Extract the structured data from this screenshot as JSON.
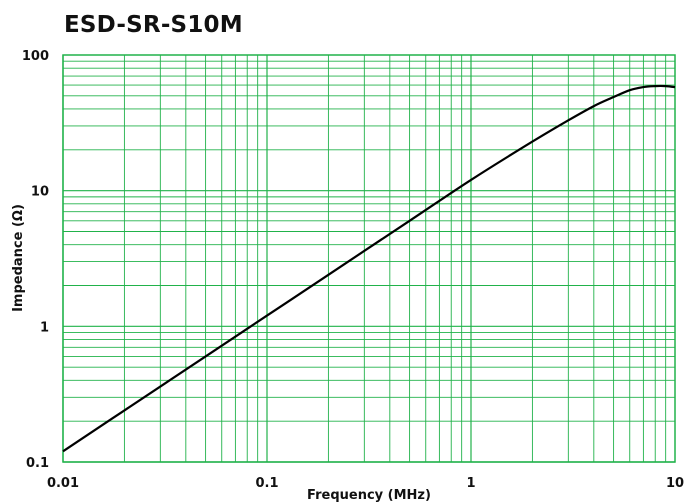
{
  "chart_data": {
    "type": "line",
    "title": "ESD-SR-S10M",
    "xlabel": "Frequency (MHz)",
    "ylabel": "Impedance (Ω)",
    "x_scale": "log",
    "y_scale": "log",
    "xlim": [
      0.01,
      10
    ],
    "ylim": [
      0.1,
      100
    ],
    "x_tick_labels": [
      "0.01",
      "0.1",
      "1",
      "10"
    ],
    "y_tick_labels": [
      "0.1",
      "1",
      "10",
      "100"
    ],
    "grid": true,
    "grid_color": "#21b24a",
    "line_color": "#000000",
    "series": [
      {
        "x": [
          0.01,
          0.02,
          0.05,
          0.1,
          0.2,
          0.5,
          1,
          2,
          3,
          4,
          5,
          6,
          7,
          8,
          9,
          10
        ],
        "values": [
          0.12,
          0.24,
          0.6,
          1.2,
          2.4,
          6.0,
          12,
          23,
          33,
          42,
          49,
          55,
          58,
          59,
          59,
          58
        ]
      }
    ]
  }
}
